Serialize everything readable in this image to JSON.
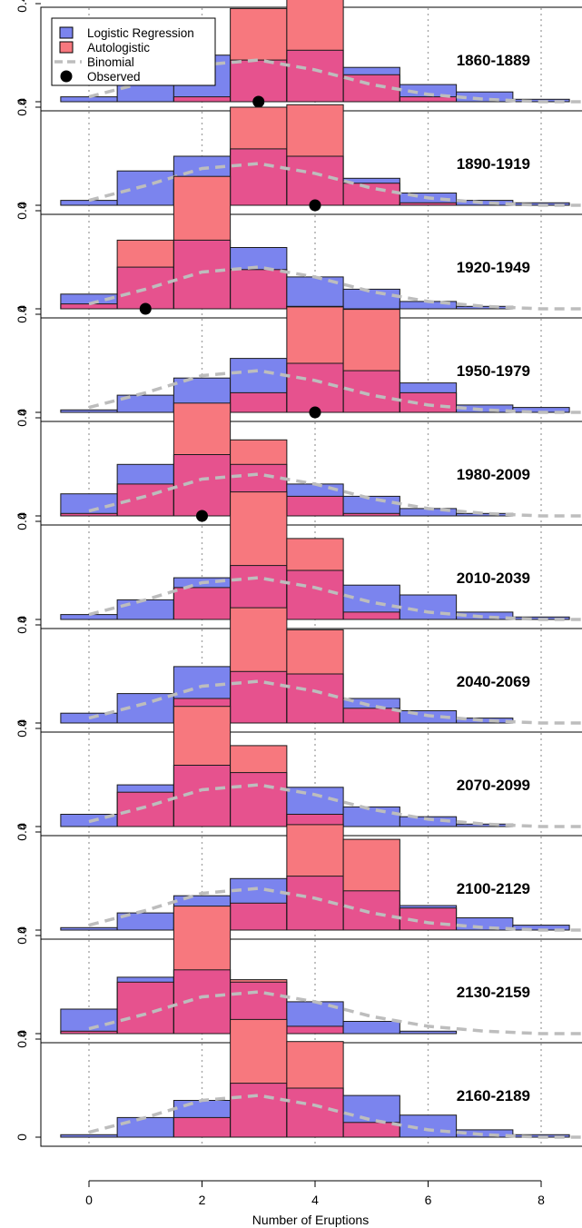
{
  "chart_data": {
    "type": "bar",
    "xlabel": "Number of Eruptions",
    "ylabel": "",
    "xlim": [
      -0.5,
      8.5
    ],
    "ylim": [
      0,
      0.55
    ],
    "x_ticks": [
      "0",
      "2",
      "4",
      "6",
      "8"
    ],
    "y_ticks": [
      "0",
      "0.4"
    ],
    "grid": "vertical dotted at even counts",
    "legend_position": "top-left",
    "legend": [
      "Logistic Regression",
      "Autologistic",
      "Binomial",
      "Observed"
    ],
    "colors": {
      "logistic": "#7b84ee",
      "autologistic": "#f7787e",
      "overlap": "#e6528e",
      "binomial": "#bdbdbd",
      "observed": "#000000"
    },
    "categories": [
      0,
      1,
      2,
      3,
      4,
      5,
      6,
      7,
      8
    ],
    "binomial_curve": [
      0.02,
      0.08,
      0.15,
      0.17,
      0.13,
      0.07,
      0.03,
      0.01,
      0.0
    ],
    "panels": [
      {
        "label": "1860-1889",
        "logistic": [
          0.02,
          0.09,
          0.19,
          0.17,
          0.21,
          0.14,
          0.07,
          0.04,
          0.01
        ],
        "autologistic": [
          0.0,
          0.0,
          0.02,
          0.38,
          0.46,
          0.11,
          0.02,
          0.0,
          0.0
        ],
        "observed": 3
      },
      {
        "label": "1890-1919",
        "logistic": [
          0.02,
          0.14,
          0.2,
          0.23,
          0.2,
          0.11,
          0.05,
          0.02,
          0.01
        ],
        "autologistic": [
          0.0,
          0.0,
          0.09,
          0.4,
          0.41,
          0.09,
          0.01,
          0.0,
          0.0
        ],
        "observed": 4
      },
      {
        "label": "1920-1949",
        "logistic": [
          0.06,
          0.17,
          0.28,
          0.25,
          0.13,
          0.08,
          0.03,
          0.01,
          0.0
        ],
        "autologistic": [
          0.02,
          0.28,
          0.54,
          0.16,
          0.01,
          0.0,
          0.0,
          0.0,
          0.0
        ],
        "observed": 1
      },
      {
        "label": "1950-1979",
        "logistic": [
          0.01,
          0.07,
          0.14,
          0.22,
          0.2,
          0.17,
          0.12,
          0.03,
          0.02
        ],
        "autologistic": [
          0.0,
          0.0,
          0.01,
          0.08,
          0.43,
          0.42,
          0.08,
          0.0,
          0.0
        ],
        "observed": 4
      },
      {
        "label": "1980-2009",
        "logistic": [
          0.09,
          0.21,
          0.25,
          0.21,
          0.13,
          0.08,
          0.03,
          0.01,
          0.0
        ],
        "autologistic": [
          0.01,
          0.13,
          0.46,
          0.31,
          0.08,
          0.01,
          0.0,
          0.0,
          0.0
        ],
        "observed": 2
      },
      {
        "label": "2010-2039",
        "logistic": [
          0.02,
          0.08,
          0.17,
          0.22,
          0.2,
          0.14,
          0.1,
          0.03,
          0.01
        ],
        "autologistic": [
          0.0,
          0.0,
          0.13,
          0.52,
          0.33,
          0.03,
          0.0,
          0.0,
          0.0
        ],
        "observed": null
      },
      {
        "label": "2040-2069",
        "logistic": [
          0.04,
          0.12,
          0.23,
          0.21,
          0.2,
          0.1,
          0.05,
          0.02,
          0.0
        ],
        "autologistic": [
          0.0,
          0.0,
          0.1,
          0.47,
          0.38,
          0.06,
          0.0,
          0.0,
          0.0
        ],
        "observed": null
      },
      {
        "label": "2070-2099",
        "logistic": [
          0.05,
          0.17,
          0.25,
          0.22,
          0.16,
          0.08,
          0.04,
          0.01,
          0.0
        ],
        "autologistic": [
          0.0,
          0.14,
          0.49,
          0.33,
          0.05,
          0.0,
          0.0,
          0.0,
          0.0
        ],
        "observed": null
      },
      {
        "label": "2100-2129",
        "logistic": [
          0.01,
          0.07,
          0.14,
          0.21,
          0.22,
          0.16,
          0.1,
          0.05,
          0.02
        ],
        "autologistic": [
          0.0,
          0.0,
          0.01,
          0.11,
          0.43,
          0.37,
          0.09,
          0.0,
          0.0
        ],
        "observed": null
      },
      {
        "label": "2130-2159",
        "logistic": [
          0.1,
          0.23,
          0.26,
          0.21,
          0.13,
          0.05,
          0.01,
          0.0,
          0.0
        ],
        "autologistic": [
          0.01,
          0.21,
          0.52,
          0.22,
          0.03,
          0.0,
          0.0,
          0.0,
          0.0
        ],
        "observed": null
      },
      {
        "label": "2160-2189",
        "logistic": [
          0.01,
          0.08,
          0.15,
          0.22,
          0.2,
          0.17,
          0.09,
          0.03,
          0.01
        ],
        "autologistic": [
          0.0,
          0.0,
          0.08,
          0.48,
          0.39,
          0.06,
          0.0,
          0.0,
          0.0
        ],
        "observed": null
      }
    ]
  }
}
